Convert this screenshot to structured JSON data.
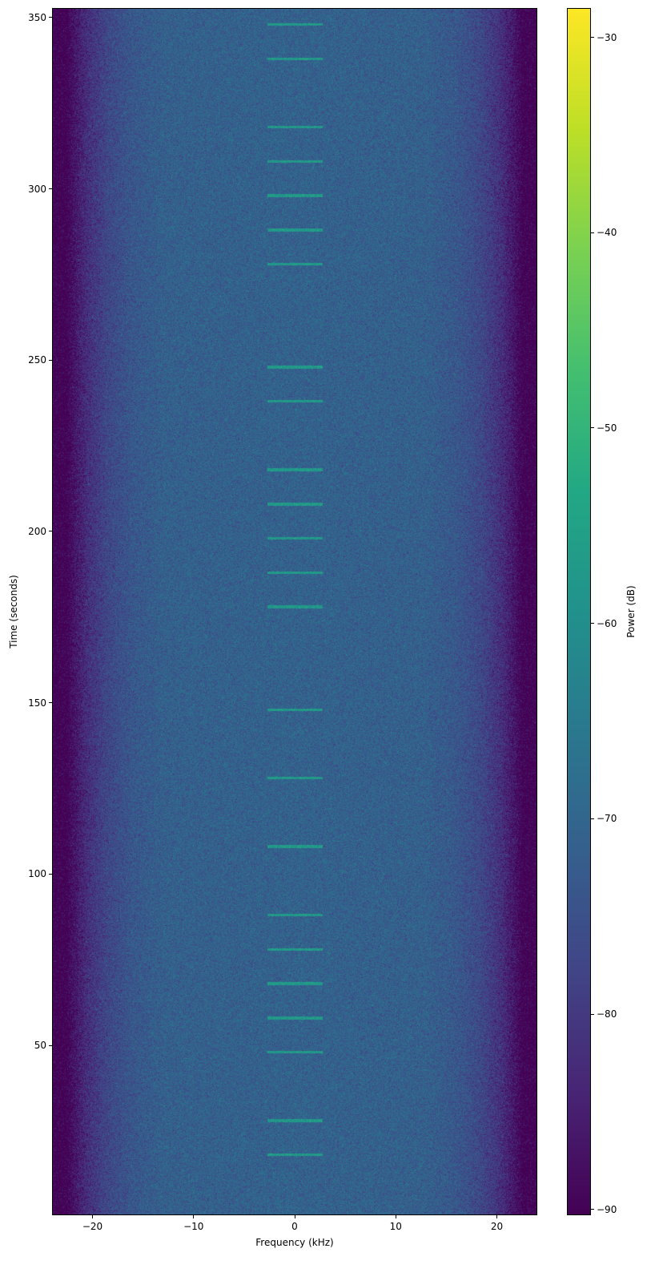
{
  "chart_data": {
    "type": "heatmap",
    "title": "",
    "xlabel": "Frequency (kHz)",
    "ylabel": "Time (seconds)",
    "colorbar_label": "Power (dB)",
    "colormap": "viridis",
    "xlim": [
      -24,
      24
    ],
    "ylim": [
      0.4,
      352.8
    ],
    "clim": [
      -90.3,
      -28.5
    ],
    "xticks": [
      -20,
      -10,
      0,
      10,
      20
    ],
    "xtick_labels": [
      "−20",
      "−10",
      "0",
      "10",
      "20"
    ],
    "yticks": [
      50,
      100,
      150,
      200,
      250,
      300,
      350
    ],
    "ytick_labels": [
      "50",
      "100",
      "150",
      "200",
      "250",
      "300",
      "350"
    ],
    "cticks": [
      -90,
      -80,
      -70,
      -60,
      -50,
      -40,
      -30
    ],
    "ctick_labels": [
      "−90",
      "−80",
      "−70",
      "−60",
      "−50",
      "−40",
      "−30"
    ],
    "noise_floor_profile_db": [
      [
        0,
        -71
      ],
      [
        13,
        -71.5
      ],
      [
        16,
        -73.5
      ],
      [
        18.5,
        -77
      ],
      [
        20.5,
        -82
      ],
      [
        21.8,
        -87
      ],
      [
        22.6,
        -91
      ],
      [
        24,
        -91
      ]
    ],
    "bursts": {
      "times_s": [
        18,
        28,
        48,
        58,
        68,
        78,
        88,
        108,
        128,
        148,
        178,
        188,
        198,
        208,
        218,
        238,
        248,
        278,
        288,
        298,
        308,
        318,
        338,
        348
      ],
      "freq_range_khz": [
        -2.7,
        2.8
      ],
      "duration_s": 0.8,
      "power_db": -57
    }
  }
}
